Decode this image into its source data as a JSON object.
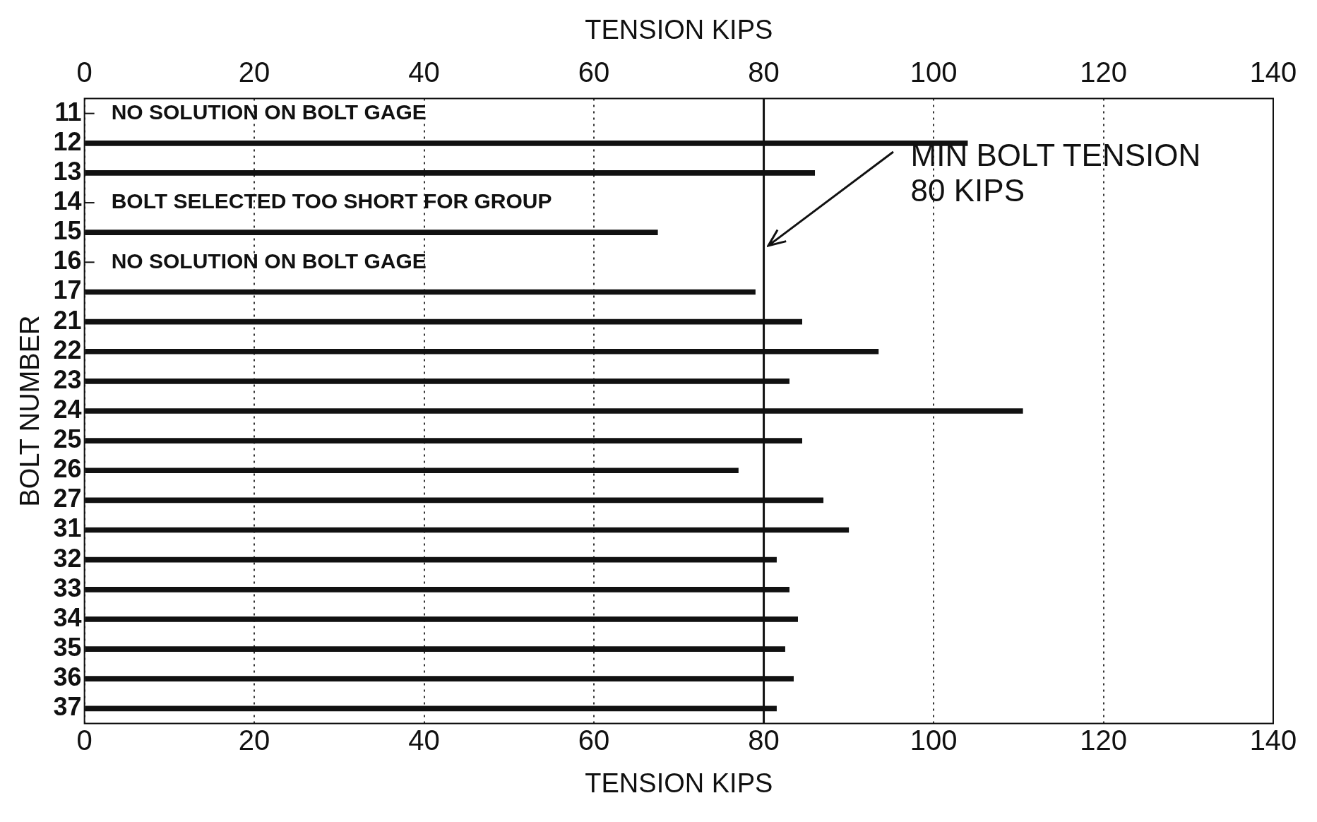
{
  "chart_data": {
    "type": "bar",
    "orientation": "horizontal",
    "xlabel": "TENSION KIPS",
    "ylabel": "BOLT NUMBER",
    "x2label": "TENSION KIPS",
    "categories": [
      "11",
      "12",
      "13",
      "14",
      "15",
      "16",
      "17",
      "21",
      "22",
      "23",
      "24",
      "25",
      "26",
      "27",
      "31",
      "32",
      "33",
      "34",
      "35",
      "36",
      "37"
    ],
    "values": [
      null,
      104,
      86,
      null,
      67.5,
      null,
      79,
      84.5,
      93.5,
      83,
      110.5,
      84.5,
      77,
      87,
      90,
      81.5,
      83,
      84,
      82.5,
      83.5,
      81.5
    ],
    "color": "#111111",
    "xlim": [
      0,
      140
    ],
    "xticks": [
      0,
      20,
      40,
      60,
      80,
      100,
      120,
      140
    ],
    "x2lim": [
      0,
      140
    ],
    "x2ticks": [
      0,
      20,
      40,
      60,
      80,
      100,
      120,
      140
    ],
    "grid": "x",
    "ref_lines": [
      {
        "axis": "x",
        "value": 80,
        "label": "MIN BOLT TENSION\n80 KIPS",
        "color": "#111111"
      }
    ],
    "annotations": [
      "NO SOLUTION ON BOLT GAGE",
      "BOLT SELECTED TOO SHORT FOR GROUP",
      "NO SOLUTION ON BOLT GAGE"
    ]
  }
}
